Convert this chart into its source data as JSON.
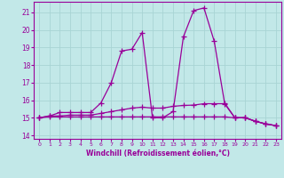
{
  "xlabel": "Windchill (Refroidissement éolien,°C)",
  "background_color": "#c2e8e8",
  "grid_color": "#a8d4d4",
  "line_color": "#990099",
  "xlim": [
    -0.5,
    23.5
  ],
  "ylim": [
    13.8,
    21.6
  ],
  "yticks": [
    14,
    15,
    16,
    17,
    18,
    19,
    20,
    21
  ],
  "xticks": [
    0,
    1,
    2,
    3,
    4,
    5,
    6,
    7,
    8,
    9,
    10,
    11,
    12,
    13,
    14,
    15,
    16,
    17,
    18,
    19,
    20,
    21,
    22,
    23
  ],
  "line1_x": [
    0,
    1,
    2,
    3,
    4,
    5,
    6,
    7,
    8,
    9,
    10,
    11,
    12,
    13,
    14,
    15,
    16,
    17,
    18,
    19,
    20,
    21,
    22,
    23
  ],
  "line1_y": [
    15.0,
    15.1,
    15.3,
    15.3,
    15.3,
    15.3,
    15.85,
    17.0,
    18.8,
    18.9,
    19.85,
    15.0,
    15.0,
    15.35,
    19.6,
    21.1,
    21.25,
    19.35,
    15.85,
    15.0,
    15.0,
    14.8,
    14.65,
    14.55
  ],
  "line2_x": [
    0,
    1,
    2,
    3,
    4,
    5,
    6,
    7,
    8,
    9,
    10,
    11,
    12,
    13,
    14,
    15,
    16,
    17,
    18,
    19,
    20,
    21,
    22,
    23
  ],
  "line2_y": [
    15.0,
    15.1,
    15.1,
    15.15,
    15.15,
    15.15,
    15.25,
    15.35,
    15.45,
    15.55,
    15.6,
    15.55,
    15.55,
    15.65,
    15.7,
    15.72,
    15.8,
    15.8,
    15.8,
    15.0,
    15.0,
    14.8,
    14.65,
    14.55
  ],
  "line3_x": [
    0,
    1,
    2,
    3,
    4,
    5,
    6,
    7,
    8,
    9,
    10,
    11,
    12,
    13,
    14,
    15,
    16,
    17,
    18,
    19,
    20,
    21,
    22,
    23
  ],
  "line3_y": [
    15.0,
    15.05,
    15.05,
    15.05,
    15.05,
    15.05,
    15.05,
    15.05,
    15.05,
    15.05,
    15.05,
    15.05,
    15.05,
    15.05,
    15.05,
    15.05,
    15.05,
    15.05,
    15.05,
    15.0,
    15.0,
    14.8,
    14.65,
    14.55
  ]
}
